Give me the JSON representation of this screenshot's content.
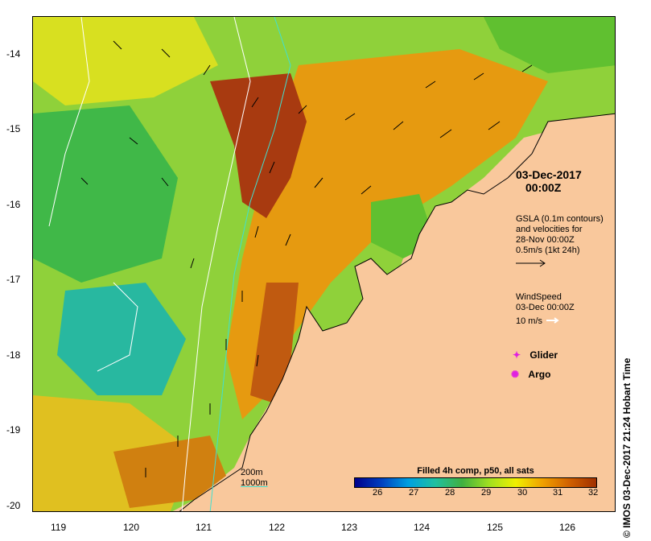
{
  "map": {
    "x_ticks": [
      "119",
      "120",
      "121",
      "122",
      "123",
      "124",
      "125",
      "126"
    ],
    "y_ticks": [
      "-14",
      "-15",
      "-16",
      "-17",
      "-18",
      "-19",
      "-20"
    ],
    "land_color": "#f9c89c",
    "ocean_palette": [
      "#00008b",
      "#0040c0",
      "#00a0e0",
      "#20c0a0",
      "#40b040",
      "#a0e020",
      "#f0f000",
      "#f0a000",
      "#d06000",
      "#a03000"
    ]
  },
  "annotations": {
    "date": "03-Dec-2017",
    "time": "00:00Z",
    "gsla_line1": "GSLA (0.1m contours)",
    "gsla_line2": "and velocities for",
    "gsla_line3": "28-Nov 00:00Z",
    "gsla_line4": "0.5m/s (1kt 24h)",
    "wind_line1": "WindSpeed",
    "wind_line2": "03-Dec 00:00Z",
    "wind_line3": "10 m/s",
    "glider_label": "Glider",
    "argo_label": "Argo",
    "contour_200": "200m",
    "contour_1000": "1000m"
  },
  "legend": {
    "title": "Filled 4h comp, p50, all sats",
    "ticks": [
      "26",
      "27",
      "28",
      "29",
      "30",
      "31",
      "32"
    ]
  },
  "credit": "© IMOS 03-Dec-2017 21:24 Hobart Time"
}
